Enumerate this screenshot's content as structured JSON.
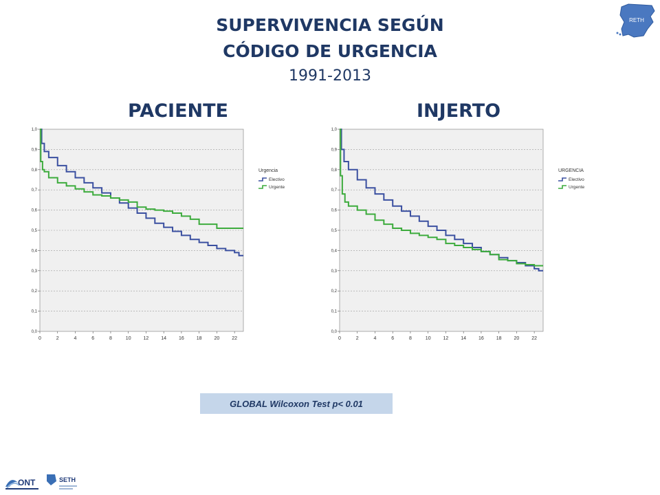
{
  "header": {
    "title_line1": "SUPERVIVENCIA SEGÚN",
    "title_line2": "CÓDIGO DE URGENCIA",
    "years": "1991-2013"
  },
  "logo_map_text": "RETH",
  "footer": {
    "ont_logo_text": "ONT",
    "seth_logo_text": "SETH"
  },
  "wilcoxon": "GLOBAL Wilcoxon Test  p< 0.01",
  "colors": {
    "electivo": "#3a4fa0",
    "urgente": "#3cab3c",
    "title": "#1f3864"
  },
  "chart_data": [
    {
      "type": "line",
      "title": "PACIENTE",
      "legend_title": "Urgencia",
      "legend_position": "right",
      "xlim": [
        0,
        23
      ],
      "ylim": [
        0,
        1
      ],
      "xticks": [
        "0",
        "2",
        "4",
        "6",
        "8",
        "10",
        "12",
        "14",
        "16",
        "18",
        "20",
        "22"
      ],
      "yticks": [
        "0,0",
        "0,1",
        "0,2",
        "0,3",
        "0,4",
        "0,5",
        "0,6",
        "0,7",
        "0,8",
        "0,9",
        "1,0"
      ],
      "grid": true,
      "series": [
        {
          "name": "Electivo",
          "x": [
            0,
            0.2,
            0.5,
            1,
            2,
            3,
            4,
            5,
            6,
            7,
            8,
            9,
            10,
            11,
            12,
            13,
            14,
            15,
            16,
            17,
            18,
            19,
            20,
            21,
            22,
            22.5,
            23
          ],
          "y": [
            1,
            0.93,
            0.89,
            0.86,
            0.82,
            0.79,
            0.76,
            0.735,
            0.71,
            0.685,
            0.66,
            0.635,
            0.61,
            0.585,
            0.56,
            0.535,
            0.515,
            0.495,
            0.475,
            0.455,
            0.44,
            0.425,
            0.41,
            0.4,
            0.39,
            0.375,
            0.375
          ]
        },
        {
          "name": "Urgente",
          "x": [
            0,
            0.1,
            0.3,
            0.5,
            1,
            2,
            3,
            4,
            5,
            6,
            7,
            8,
            9,
            10,
            11,
            12,
            13,
            14,
            15,
            16,
            17,
            18,
            19,
            20,
            21,
            22,
            23
          ],
          "y": [
            1,
            0.84,
            0.8,
            0.79,
            0.76,
            0.735,
            0.72,
            0.705,
            0.69,
            0.675,
            0.67,
            0.66,
            0.65,
            0.64,
            0.615,
            0.605,
            0.6,
            0.595,
            0.585,
            0.57,
            0.555,
            0.53,
            0.53,
            0.51,
            0.51,
            0.51,
            0.51
          ]
        }
      ]
    },
    {
      "type": "line",
      "title": "INJERTO",
      "legend_title": "URGENCIA",
      "legend_position": "right",
      "xlim": [
        0,
        23
      ],
      "ylim": [
        0,
        1
      ],
      "xticks": [
        "0",
        "2",
        "4",
        "6",
        "8",
        "10",
        "12",
        "14",
        "16",
        "18",
        "20",
        "22"
      ],
      "yticks": [
        "0,0",
        "0,1",
        "0,2",
        "0,3",
        "0,4",
        "0,5",
        "0,6",
        "0,7",
        "0,8",
        "0,9",
        "1,0"
      ],
      "grid": true,
      "series": [
        {
          "name": "Electivo",
          "x": [
            0,
            0.2,
            0.5,
            1,
            2,
            3,
            4,
            5,
            6,
            7,
            8,
            9,
            10,
            11,
            12,
            13,
            14,
            15,
            16,
            17,
            18,
            19,
            20,
            21,
            22,
            22.5,
            23
          ],
          "y": [
            1,
            0.9,
            0.84,
            0.8,
            0.75,
            0.71,
            0.68,
            0.65,
            0.62,
            0.595,
            0.57,
            0.545,
            0.52,
            0.5,
            0.475,
            0.455,
            0.435,
            0.415,
            0.395,
            0.38,
            0.365,
            0.35,
            0.34,
            0.325,
            0.31,
            0.3,
            0.3
          ]
        },
        {
          "name": "Urgente",
          "x": [
            0,
            0.1,
            0.3,
            0.6,
            1,
            2,
            3,
            4,
            5,
            6,
            7,
            8,
            9,
            10,
            11,
            12,
            13,
            14,
            15,
            16,
            17,
            18,
            19,
            20,
            21,
            22,
            23
          ],
          "y": [
            1,
            0.77,
            0.68,
            0.64,
            0.62,
            0.6,
            0.58,
            0.55,
            0.53,
            0.51,
            0.5,
            0.485,
            0.475,
            0.465,
            0.455,
            0.435,
            0.425,
            0.415,
            0.405,
            0.395,
            0.38,
            0.355,
            0.35,
            0.335,
            0.33,
            0.325,
            0.325
          ]
        }
      ]
    }
  ]
}
